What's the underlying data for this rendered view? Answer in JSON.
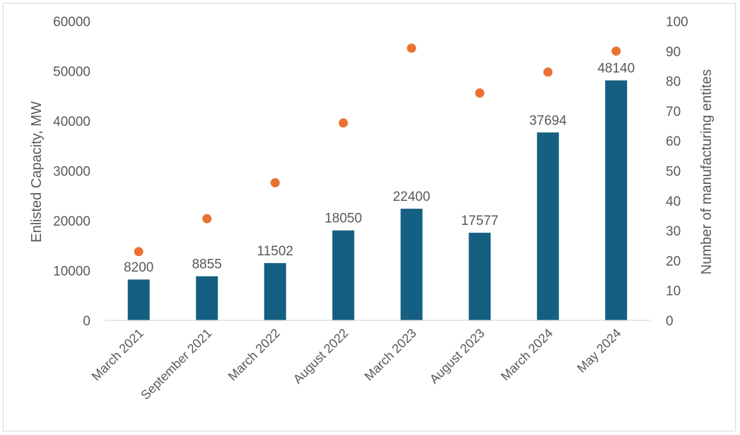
{
  "chart_data": {
    "type": "bar",
    "categories": [
      "March 2021",
      "September 2021",
      "March 2022",
      "August 2022",
      "March 2023",
      "August 2023",
      "March 2024",
      "May 2024"
    ],
    "series": [
      {
        "name": "Enlisted Capacity, MW",
        "kind": "bar",
        "axis": "left",
        "color": "#156082",
        "values": [
          8200,
          8855,
          11502,
          18050,
          22400,
          17577,
          37694,
          48140
        ]
      },
      {
        "name": "Number of manufacturing entites",
        "kind": "scatter",
        "axis": "right",
        "color": "#E97132",
        "values": [
          23,
          34,
          46,
          66,
          91,
          76,
          83,
          90
        ]
      }
    ],
    "ylabel": "Enlisted Capacity, MW",
    "y2label": "Number of manufacturing entites",
    "ylim": [
      0,
      60000
    ],
    "y2lim": [
      0,
      100
    ],
    "yticks": [
      0,
      10000,
      20000,
      30000,
      40000,
      50000,
      60000
    ],
    "y2ticks": [
      0,
      10,
      20,
      30,
      40,
      50,
      60,
      70,
      80,
      90,
      100
    ],
    "grid": false
  }
}
